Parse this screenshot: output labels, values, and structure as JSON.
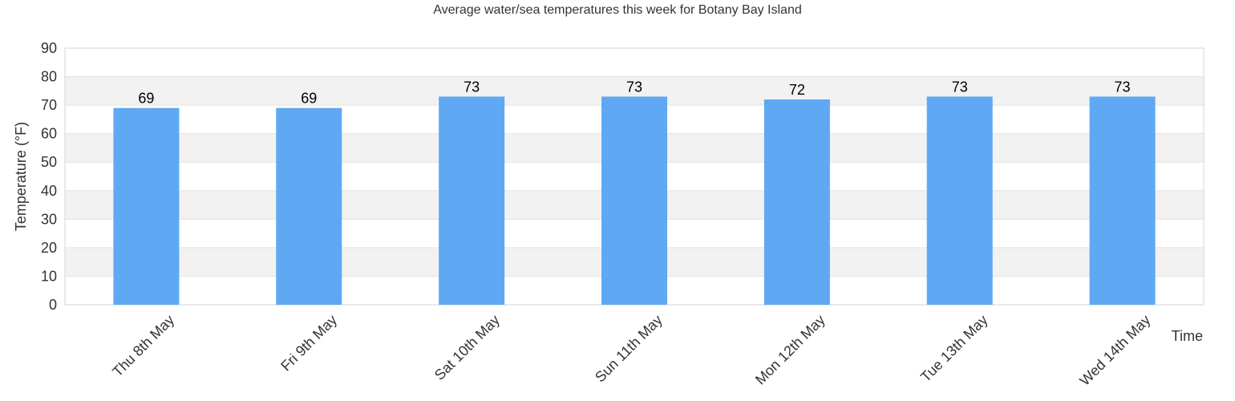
{
  "chart_data": {
    "type": "bar",
    "title": "Average water/sea temperatures this week for Botany Bay Island",
    "xlabel": "Time",
    "ylabel": "Temperature (°F)",
    "categories": [
      "Thu 8th May",
      "Fri 9th May",
      "Sat 10th May",
      "Sun 11th May",
      "Mon 12th May",
      "Tue 13th May",
      "Wed 14th May"
    ],
    "values": [
      69,
      69,
      73,
      73,
      72,
      73,
      73
    ],
    "data_labels": [
      "69",
      "69",
      "73",
      "73",
      "72",
      "73",
      "73"
    ],
    "ylim": [
      0,
      90
    ],
    "yticks": [
      0,
      10,
      20,
      30,
      40,
      50,
      60,
      70,
      80,
      90
    ],
    "ytick_labels": [
      "0",
      "10",
      "20",
      "30",
      "40",
      "50",
      "60",
      "70",
      "80",
      "90"
    ],
    "grid": true,
    "legend": "none",
    "colors": {
      "bar": "#5fa8f3",
      "band_alt": "#f2f2f2",
      "grid": "#e3e3e3",
      "frame": "#d6d6d6"
    }
  }
}
